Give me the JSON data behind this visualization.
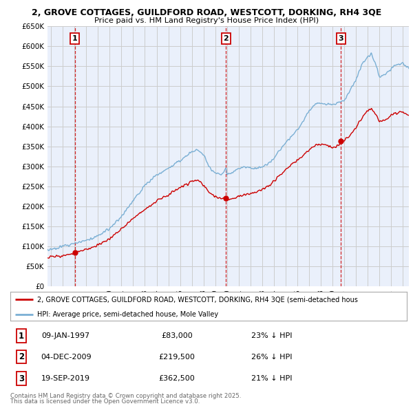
{
  "title1": "2, GROVE COTTAGES, GUILDFORD ROAD, WESTCOTT, DORKING, RH4 3QE",
  "title2": "Price paid vs. HM Land Registry's House Price Index (HPI)",
  "ylim": [
    0,
    650000
  ],
  "yticks": [
    0,
    50000,
    100000,
    150000,
    200000,
    250000,
    300000,
    350000,
    400000,
    450000,
    500000,
    550000,
    600000,
    650000
  ],
  "ytick_labels": [
    "£0",
    "£50K",
    "£100K",
    "£150K",
    "£200K",
    "£250K",
    "£300K",
    "£350K",
    "£400K",
    "£450K",
    "£500K",
    "£550K",
    "£600K",
    "£650K"
  ],
  "xlim_start": 1994.7,
  "xlim_end": 2025.5,
  "transactions": [
    {
      "num": 1,
      "date": "09-JAN-1997",
      "price": 83000,
      "year": 1997.03,
      "pct": "23%",
      "dir": "↓"
    },
    {
      "num": 2,
      "date": "04-DEC-2009",
      "price": 219500,
      "year": 2009.92,
      "pct": "26%",
      "dir": "↓"
    },
    {
      "num": 3,
      "date": "19-SEP-2019",
      "price": 362500,
      "year": 2019.72,
      "pct": "21%",
      "dir": "↓"
    }
  ],
  "legend_property": "2, GROVE COTTAGES, GUILDFORD ROAD, WESTCOTT, DORKING, RH4 3QE (semi-detached hous",
  "legend_hpi": "HPI: Average price, semi-detached house, Mole Valley",
  "footer1": "Contains HM Land Registry data © Crown copyright and database right 2025.",
  "footer2": "This data is licensed under the Open Government Licence v3.0.",
  "red_color": "#cc0000",
  "blue_color": "#7aafd4",
  "grid_color": "#cccccc",
  "plot_bg": "#eaf0fb"
}
